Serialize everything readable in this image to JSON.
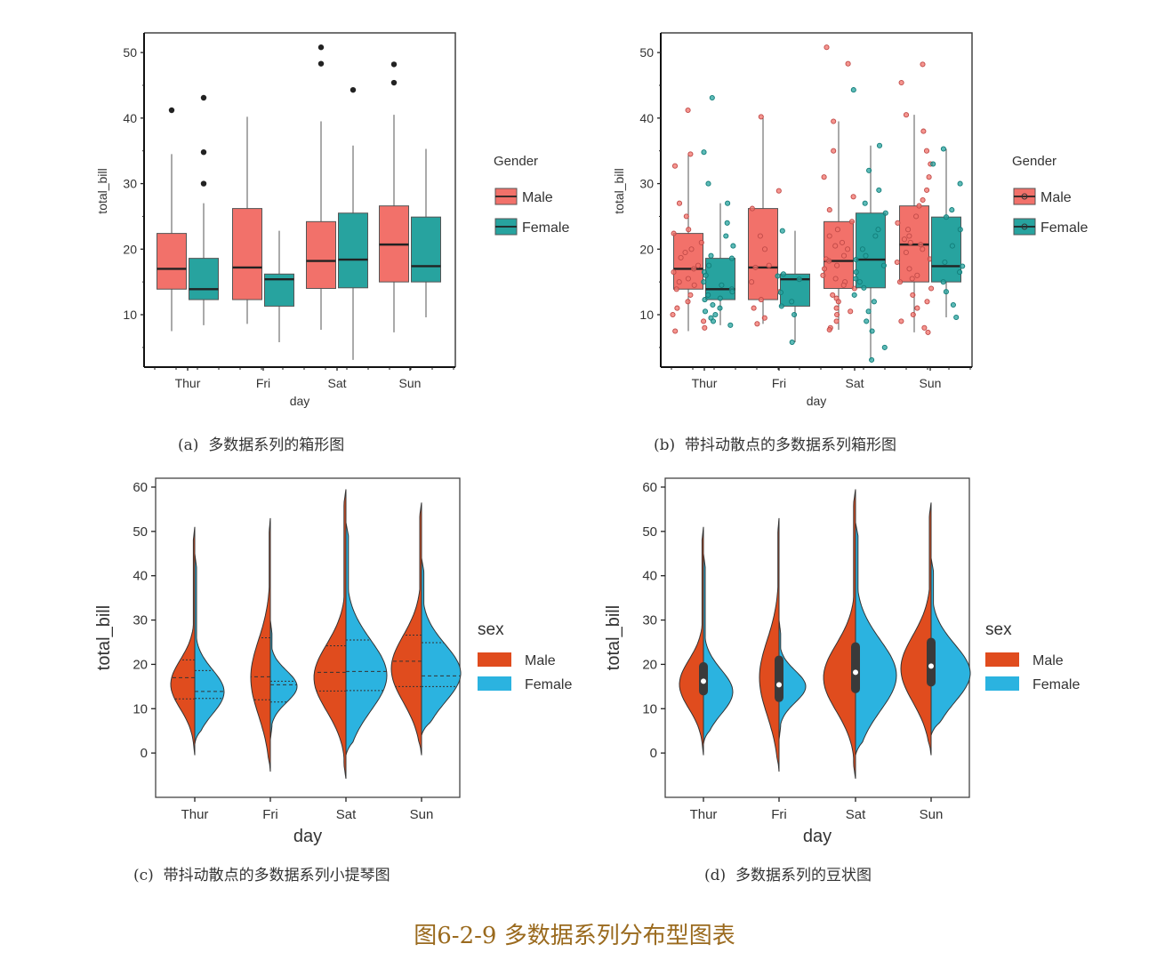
{
  "figure_caption": "图6-2-9 多数据系列分布型图表",
  "colors": {
    "box_male": "#f2716a",
    "box_female": "#27a39f",
    "violin_male": "#e04c1e",
    "violin_female": "#2bb3e0",
    "axis": "#333333",
    "caption": "#9a6a1e"
  },
  "chart_data": [
    {
      "panel": "a",
      "caption_tag": "(a)",
      "caption": "多数据系列的箱形图",
      "type": "box",
      "xlabel": "day",
      "ylabel": "total_bill",
      "categories": [
        "Thur",
        "Fri",
        "Sat",
        "Sun"
      ],
      "yticks": [
        10,
        20,
        30,
        40,
        50
      ],
      "ylim": [
        2,
        53
      ],
      "legend_title": "Gender",
      "legend_position": "right",
      "series": [
        {
          "name": "Male",
          "boxes": [
            {
              "min": 7.5,
              "q1": 13.9,
              "median": 17.0,
              "q3": 22.4,
              "max": 34.5,
              "outliers": [
                41.2
              ]
            },
            {
              "min": 8.6,
              "q1": 12.3,
              "median": 17.2,
              "q3": 26.2,
              "max": 40.2,
              "outliers": []
            },
            {
              "min": 7.7,
              "q1": 14.0,
              "median": 18.2,
              "q3": 24.2,
              "max": 39.5,
              "outliers": [
                48.3,
                50.8
              ]
            },
            {
              "min": 7.3,
              "q1": 15.0,
              "median": 20.7,
              "q3": 26.6,
              "max": 40.5,
              "outliers": [
                45.4,
                48.2
              ]
            }
          ]
        },
        {
          "name": "Female",
          "boxes": [
            {
              "min": 8.4,
              "q1": 12.3,
              "median": 13.9,
              "q3": 18.6,
              "max": 27.0,
              "outliers": [
                30.0,
                34.8,
                43.1
              ]
            },
            {
              "min": 5.8,
              "q1": 11.3,
              "median": 15.4,
              "q3": 16.2,
              "max": 22.8,
              "outliers": []
            },
            {
              "min": 3.1,
              "q1": 14.1,
              "median": 18.4,
              "q3": 25.5,
              "max": 35.8,
              "outliers": [
                44.3
              ]
            },
            {
              "min": 9.6,
              "q1": 15.0,
              "median": 17.4,
              "q3": 24.9,
              "max": 35.3,
              "outliers": []
            }
          ]
        }
      ]
    },
    {
      "panel": "b",
      "caption_tag": "(b)",
      "caption": "带抖动散点的多数据系列箱形图",
      "type": "box+jitter",
      "xlabel": "day",
      "ylabel": "total_bill",
      "categories": [
        "Thur",
        "Fri",
        "Sat",
        "Sun"
      ],
      "yticks": [
        10,
        20,
        30,
        40,
        50
      ],
      "ylim": [
        2,
        53
      ],
      "legend_title": "Gender",
      "legend_position": "right",
      "series": [
        {
          "name": "Male",
          "points": [
            [
              41.2,
              34.5,
              32.7,
              27.0,
              25.0,
              23.0,
              22.4,
              21.0,
              20.0,
              19.5,
              18.7,
              17.5,
              17.0,
              16.5,
              15.5,
              15.0,
              14.5,
              13.9,
              13.0,
              12.0,
              11.0,
              10.0,
              9.0,
              8.0,
              7.5
            ],
            [
              40.2,
              28.9,
              26.2,
              22.0,
              20.0,
              17.5,
              17.2,
              15.0,
              13.5,
              12.3,
              11.0,
              9.5,
              8.6
            ],
            [
              50.8,
              48.3,
              39.5,
              35.0,
              31.0,
              28.0,
              26.0,
              24.2,
              23.0,
              22.0,
              21.0,
              20.5,
              20.0,
              19.0,
              18.5,
              18.2,
              17.5,
              17.0,
              16.0,
              15.5,
              15.0,
              14.5,
              14.0,
              13.0,
              12.5,
              12.0,
              11.0,
              10.5,
              10.0,
              9.0,
              8.0,
              7.7
            ],
            [
              48.2,
              45.4,
              40.5,
              38.0,
              35.0,
              33.0,
              31.0,
              29.0,
              27.5,
              26.6,
              25.0,
              24.0,
              23.0,
              22.0,
              21.5,
              21.0,
              20.7,
              20.0,
              19.5,
              18.5,
              18.0,
              17.0,
              16.0,
              15.5,
              15.0,
              14.0,
              13.0,
              12.0,
              11.0,
              10.0,
              9.0,
              8.0,
              7.3
            ]
          ]
        },
        {
          "name": "Female",
          "points": [
            [
              43.1,
              34.8,
              30.0,
              27.0,
              24.0,
              22.0,
              20.5,
              19.0,
              18.6,
              17.5,
              16.5,
              16.0,
              15.0,
              14.5,
              13.9,
              13.5,
              13.0,
              12.5,
              12.3,
              11.5,
              11.0,
              10.5,
              10.0,
              9.5,
              9.0,
              8.4
            ],
            [
              22.8,
              16.2,
              15.9,
              15.4,
              13.4,
              12.0,
              11.3,
              10.0,
              5.8
            ],
            [
              44.3,
              35.8,
              32.0,
              29.0,
              27.0,
              25.5,
              23.0,
              22.0,
              20.0,
              19.0,
              18.4,
              17.5,
              16.5,
              15.5,
              15.0,
              14.1,
              13.0,
              12.0,
              10.5,
              9.0,
              7.5,
              5.0,
              3.1
            ],
            [
              35.3,
              33.0,
              30.0,
              26.0,
              24.9,
              23.0,
              20.5,
              18.0,
              17.4,
              16.5,
              15.0,
              13.5,
              11.5,
              9.6
            ]
          ]
        }
      ]
    },
    {
      "panel": "c",
      "caption_tag": "(c)",
      "caption": "带抖动散点的多数据系列小提琴图",
      "type": "split-violin",
      "xlabel": "day",
      "ylabel": "total_bill",
      "categories": [
        "Thur",
        "Fri",
        "Sat",
        "Sun"
      ],
      "yticks": [
        0,
        10,
        20,
        30,
        40,
        50,
        60
      ],
      "ylim": [
        -10,
        62
      ],
      "legend_title": "sex",
      "legend_position": "right",
      "series": [
        {
          "name": "Male",
          "violins": [
            {
              "lo": -0.5,
              "hi": 51,
              "mode": 15.5,
              "sd": 5.5,
              "maxw": 27,
              "q": [
                12.2,
                17.0,
                21.0
              ]
            },
            {
              "lo": -4.2,
              "hi": 53,
              "mode": 17.0,
              "sd": 8.5,
              "maxw": 22,
              "q": [
                12.0,
                17.2,
                26.0
              ]
            },
            {
              "lo": -5.8,
              "hi": 59.5,
              "mode": 17.0,
              "sd": 7.5,
              "maxw": 36,
              "q": [
                14.0,
                18.2,
                24.2
              ]
            },
            {
              "lo": -0.5,
              "hi": 56.5,
              "mode": 19.0,
              "sd": 7.5,
              "maxw": 34,
              "q": [
                15.0,
                20.7,
                26.6
              ]
            }
          ]
        },
        {
          "name": "Female",
          "violins": [
            {
              "lo": 2.0,
              "hi": 45,
              "mode": 13.8,
              "sd": 5.0,
              "maxw": 33,
              "q": [
                12.3,
                13.9,
                18.6
              ]
            },
            {
              "lo": 3.0,
              "hi": 30,
              "mode": 15.0,
              "sd": 3.6,
              "maxw": 30,
              "q": [
                11.5,
                15.4,
                16.2
              ]
            },
            {
              "lo": -0.5,
              "hi": 52,
              "mode": 17.5,
              "sd": 8.0,
              "maxw": 46,
              "q": [
                14.1,
                18.4,
                25.5
              ]
            },
            {
              "lo": 4.0,
              "hi": 44,
              "mode": 18.0,
              "sd": 6.5,
              "maxw": 44,
              "q": [
                15.0,
                17.4,
                24.9
              ]
            }
          ]
        }
      ]
    },
    {
      "panel": "d",
      "caption_tag": "(d)",
      "caption": "多数据系列的豆状图",
      "type": "split-violin-bean",
      "xlabel": "day",
      "ylabel": "total_bill",
      "categories": [
        "Thur",
        "Fri",
        "Sat",
        "Sun"
      ],
      "yticks": [
        0,
        10,
        20,
        30,
        40,
        50,
        60
      ],
      "ylim": [
        -10,
        62
      ],
      "legend_title": "sex",
      "legend_position": "right",
      "inner_boxes": [
        {
          "q1": 13.0,
          "median": 16.2,
          "q3": 20.5
        },
        {
          "q1": 11.5,
          "median": 15.4,
          "q3": 22.0
        },
        {
          "q1": 13.5,
          "median": 18.2,
          "q3": 25.0
        },
        {
          "q1": 15.0,
          "median": 19.6,
          "q3": 26.0
        }
      ],
      "series": [
        {
          "name": "Male",
          "violins": [
            {
              "lo": -0.5,
              "hi": 51,
              "mode": 15.5,
              "sd": 5.5,
              "maxw": 27
            },
            {
              "lo": -4.2,
              "hi": 53,
              "mode": 17.0,
              "sd": 8.5,
              "maxw": 22
            },
            {
              "lo": -5.8,
              "hi": 59.5,
              "mode": 17.0,
              "sd": 7.5,
              "maxw": 36
            },
            {
              "lo": -0.5,
              "hi": 56.5,
              "mode": 19.0,
              "sd": 7.5,
              "maxw": 34
            }
          ]
        },
        {
          "name": "Female",
          "violins": [
            {
              "lo": 2.0,
              "hi": 45,
              "mode": 13.8,
              "sd": 5.0,
              "maxw": 33
            },
            {
              "lo": 3.0,
              "hi": 30,
              "mode": 15.0,
              "sd": 3.6,
              "maxw": 30
            },
            {
              "lo": -0.5,
              "hi": 52,
              "mode": 17.5,
              "sd": 8.0,
              "maxw": 46
            },
            {
              "lo": 4.0,
              "hi": 44,
              "mode": 18.0,
              "sd": 6.5,
              "maxw": 44
            }
          ]
        }
      ]
    }
  ]
}
